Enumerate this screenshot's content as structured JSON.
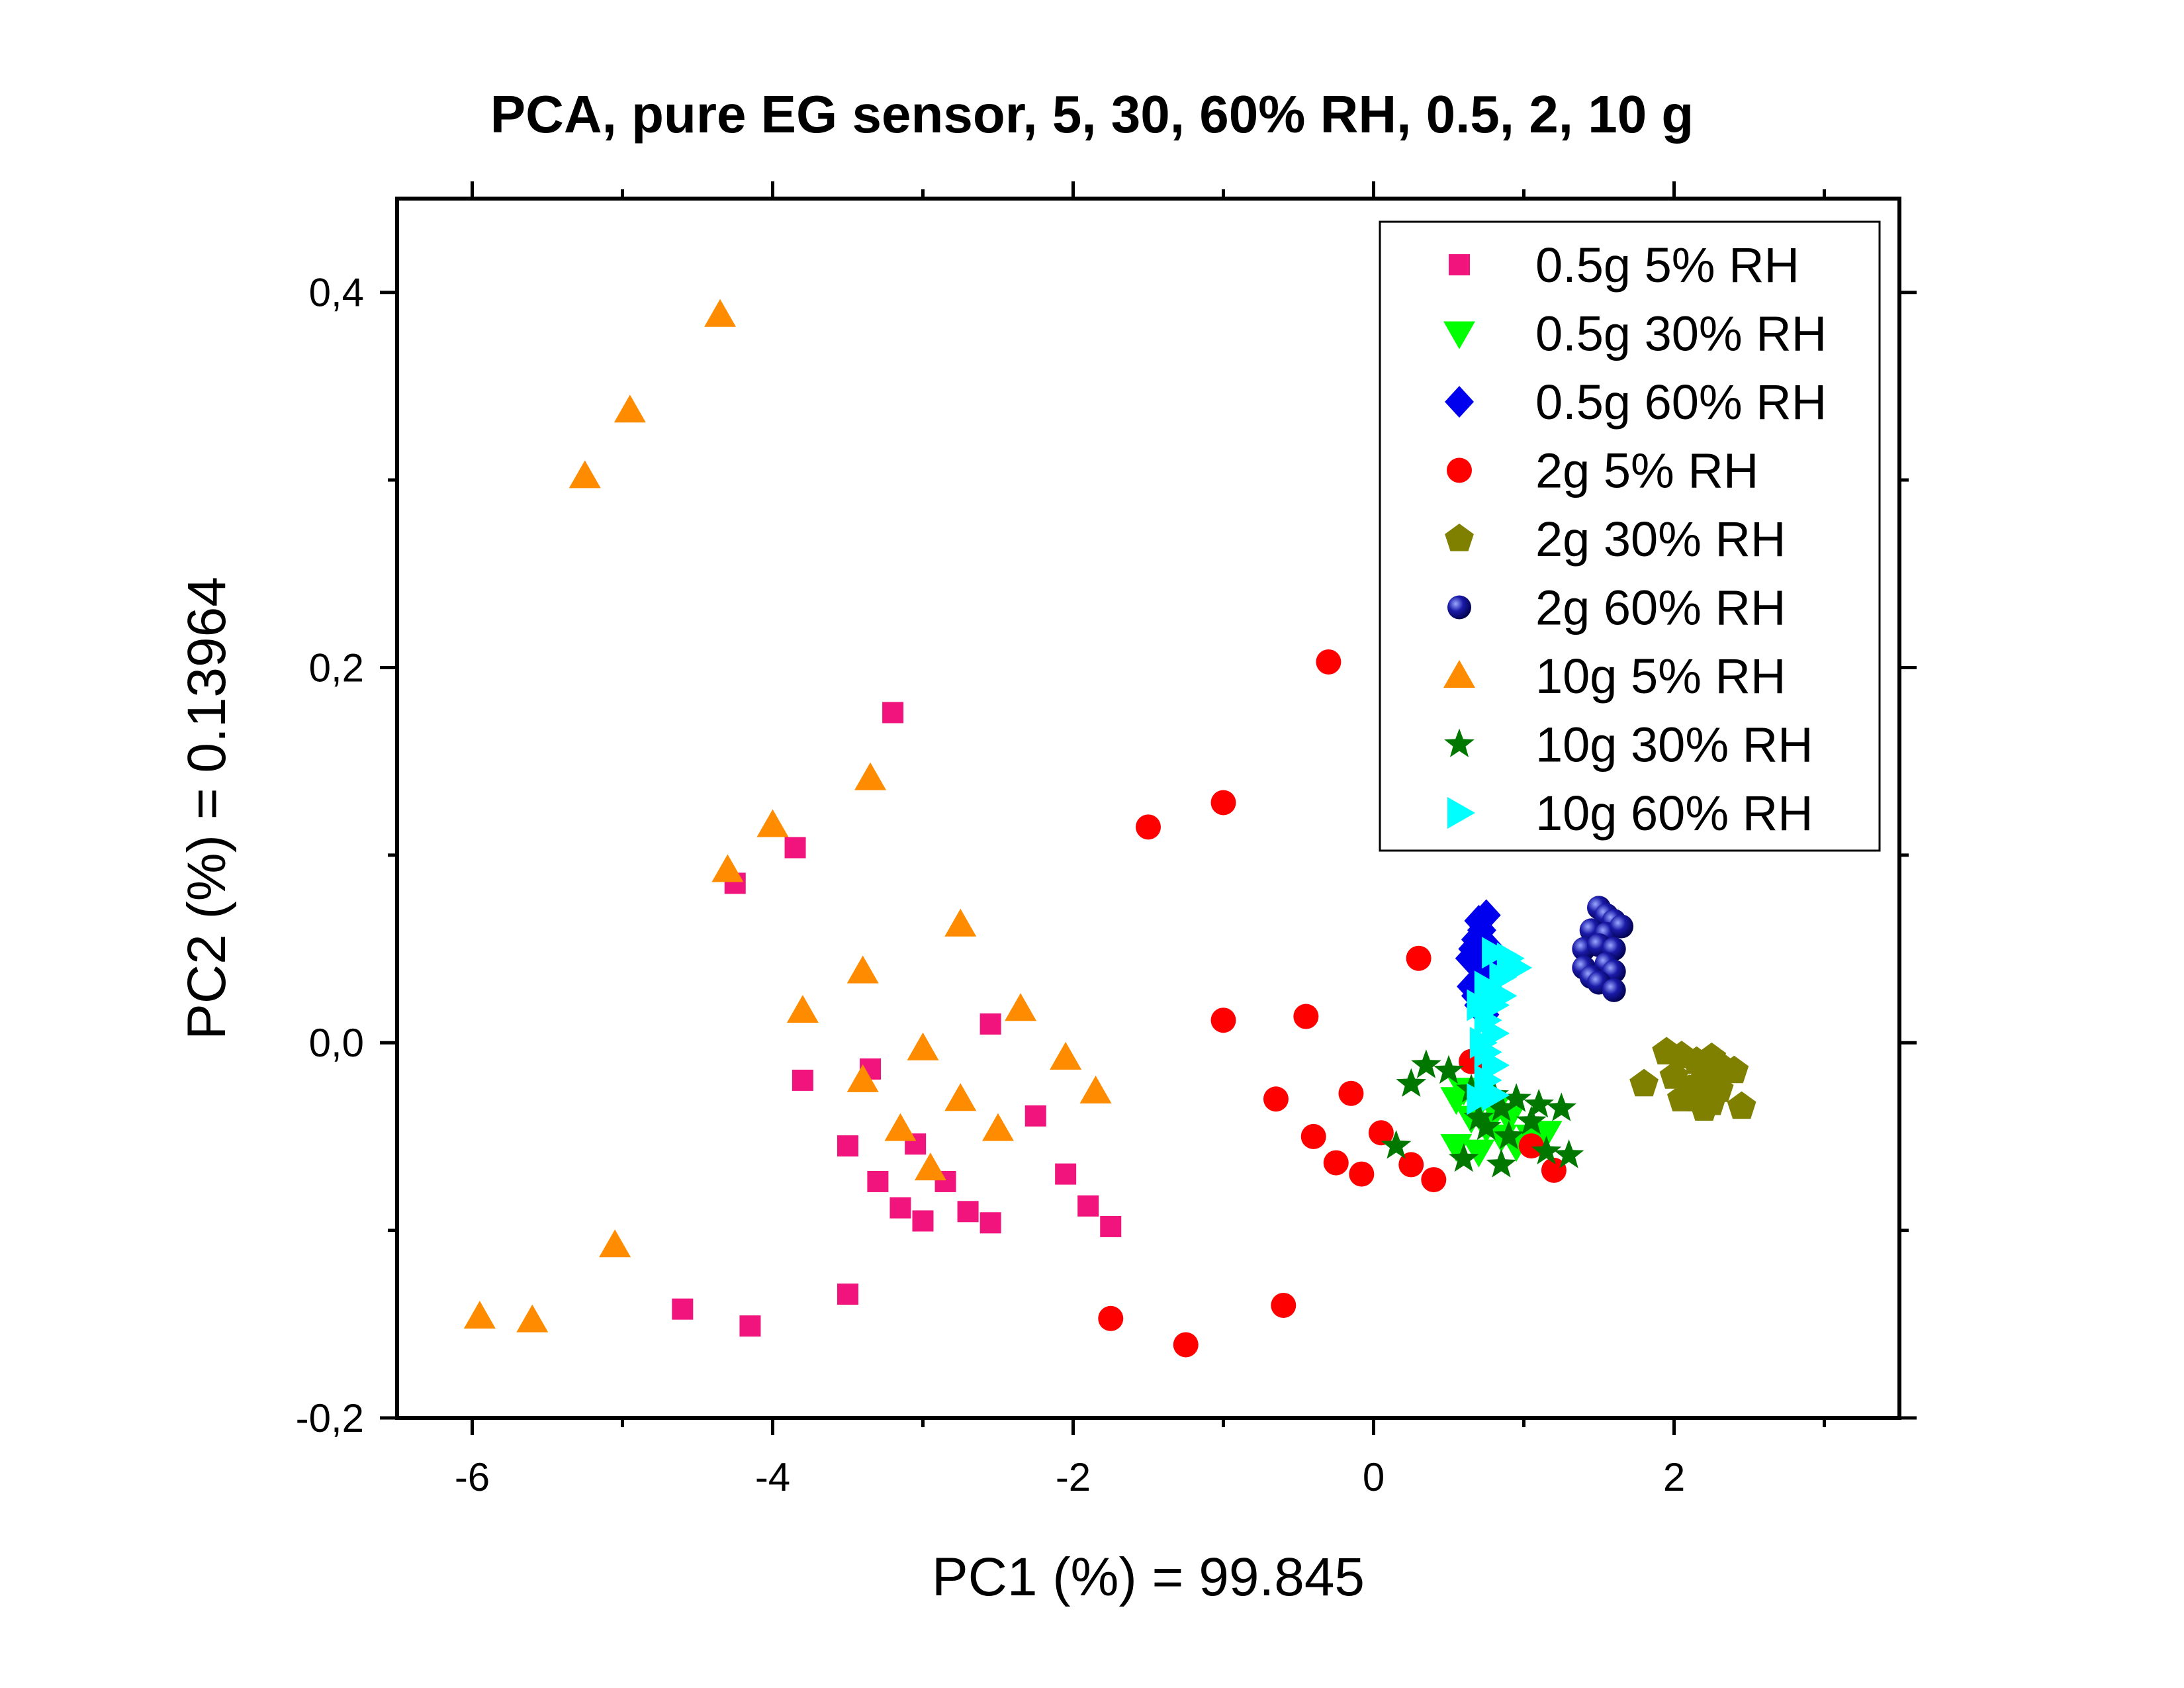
{
  "chart_data": {
    "type": "scatter",
    "title": "PCA, pure EG sensor, 5, 30, 60% RH, 0.5, 2, 10 g",
    "xlabel": "PC1 (%) = 99.845",
    "ylabel": "PC2 (%) = 0.13964",
    "xlim": [
      -6.5,
      3.5
    ],
    "ylim": [
      -0.2,
      0.45
    ],
    "xticks": [
      -6,
      -4,
      -2,
      0,
      2
    ],
    "xtick_labels": [
      "-6",
      "-4",
      "-2",
      "0",
      "2"
    ],
    "yticks": [
      -0.2,
      0.0,
      0.2,
      0.4
    ],
    "ytick_labels": [
      "-0,2",
      "0,0",
      "0,2",
      "0,4"
    ],
    "grid": false,
    "legend_position": "top-right",
    "series": [
      {
        "name": "0.5g 5% RH",
        "marker": "square",
        "color": "#f0147c",
        "points": [
          [
            -3.2,
            0.176
          ],
          [
            -3.85,
            0.104
          ],
          [
            -4.25,
            0.085
          ],
          [
            -2.55,
            0.01
          ],
          [
            -3.8,
            -0.02
          ],
          [
            -3.35,
            -0.014
          ],
          [
            -2.25,
            -0.039
          ],
          [
            -3.5,
            -0.055
          ],
          [
            -3.05,
            -0.054
          ],
          [
            -3.3,
            -0.074
          ],
          [
            -2.85,
            -0.074
          ],
          [
            -2.05,
            -0.07
          ],
          [
            -3.15,
            -0.088
          ],
          [
            -3.0,
            -0.095
          ],
          [
            -2.7,
            -0.09
          ],
          [
            -2.55,
            -0.096
          ],
          [
            -1.9,
            -0.087
          ],
          [
            -1.75,
            -0.098
          ],
          [
            -3.5,
            -0.134
          ],
          [
            -4.6,
            -0.142
          ],
          [
            -4.15,
            -0.151
          ]
        ]
      },
      {
        "name": "0.5g 30% RH",
        "marker": "triangle-down",
        "color": "#00ff00",
        "points": [
          [
            0.55,
            -0.03
          ],
          [
            0.6,
            -0.025
          ],
          [
            0.65,
            -0.04
          ],
          [
            0.75,
            -0.045
          ],
          [
            0.85,
            -0.05
          ],
          [
            0.55,
            -0.055
          ],
          [
            0.7,
            -0.058
          ],
          [
            0.95,
            -0.055
          ],
          [
            1.05,
            -0.05
          ],
          [
            1.15,
            -0.048
          ],
          [
            0.9,
            -0.04
          ],
          [
            0.8,
            -0.035
          ]
        ]
      },
      {
        "name": "0.5g 60% RH",
        "marker": "diamond",
        "color": "#0000ee",
        "points": [
          [
            0.7,
            0.065
          ],
          [
            0.75,
            0.068
          ],
          [
            0.72,
            0.06
          ],
          [
            0.68,
            0.055
          ],
          [
            0.66,
            0.05
          ],
          [
            0.64,
            0.045
          ],
          [
            0.7,
            0.04
          ],
          [
            0.72,
            0.035
          ],
          [
            0.65,
            0.03
          ],
          [
            0.68,
            0.025
          ],
          [
            0.7,
            0.02
          ],
          [
            0.74,
            0.015
          ],
          [
            0.78,
            0.05
          ],
          [
            0.8,
            0.04
          ]
        ]
      },
      {
        "name": "2g 5% RH",
        "marker": "circle",
        "color": "#ff0000",
        "points": [
          [
            -0.3,
            0.203
          ],
          [
            -1.0,
            0.128
          ],
          [
            -1.5,
            0.115
          ],
          [
            0.3,
            0.045
          ],
          [
            -1.0,
            0.012
          ],
          [
            -0.45,
            0.014
          ],
          [
            0.65,
            -0.01
          ],
          [
            -0.15,
            -0.027
          ],
          [
            -0.65,
            -0.03
          ],
          [
            -0.4,
            -0.05
          ],
          [
            0.05,
            -0.048
          ],
          [
            1.05,
            -0.055
          ],
          [
            -0.25,
            -0.064
          ],
          [
            -0.08,
            -0.07
          ],
          [
            0.25,
            -0.065
          ],
          [
            0.4,
            -0.073
          ],
          [
            1.2,
            -0.068
          ],
          [
            -0.6,
            -0.14
          ],
          [
            -1.75,
            -0.147
          ],
          [
            -1.25,
            -0.161
          ]
        ]
      },
      {
        "name": "2g 30% RH",
        "marker": "pentagon",
        "color": "#808000",
        "points": [
          [
            1.95,
            -0.005
          ],
          [
            2.05,
            -0.007
          ],
          [
            2.15,
            -0.01
          ],
          [
            2.25,
            -0.008
          ],
          [
            2.3,
            -0.012
          ],
          [
            2.4,
            -0.015
          ],
          [
            2.0,
            -0.018
          ],
          [
            2.2,
            -0.02
          ],
          [
            1.8,
            -0.022
          ],
          [
            2.1,
            -0.025
          ],
          [
            2.3,
            -0.025
          ],
          [
            2.15,
            -0.03
          ],
          [
            2.25,
            -0.032
          ],
          [
            2.45,
            -0.034
          ],
          [
            2.2,
            -0.035
          ],
          [
            2.05,
            -0.03
          ]
        ]
      },
      {
        "name": "2g 60% RH",
        "marker": "sphere",
        "color": "#00008b",
        "points": [
          [
            1.5,
            0.072
          ],
          [
            1.55,
            0.068
          ],
          [
            1.6,
            0.065
          ],
          [
            1.45,
            0.06
          ],
          [
            1.55,
            0.058
          ],
          [
            1.65,
            0.062
          ],
          [
            1.4,
            0.05
          ],
          [
            1.5,
            0.052
          ],
          [
            1.6,
            0.05
          ],
          [
            1.4,
            0.04
          ],
          [
            1.55,
            0.042
          ],
          [
            1.45,
            0.035
          ],
          [
            1.6,
            0.038
          ],
          [
            1.5,
            0.032
          ],
          [
            1.6,
            0.028
          ]
        ]
      },
      {
        "name": "10g 5% RH",
        "marker": "triangle-up",
        "color": "#ff8c00",
        "points": [
          [
            -4.35,
            0.388
          ],
          [
            -4.95,
            0.337
          ],
          [
            -5.25,
            0.302
          ],
          [
            -3.35,
            0.141
          ],
          [
            -4.0,
            0.116
          ],
          [
            -4.3,
            0.092
          ],
          [
            -2.75,
            0.063
          ],
          [
            -3.4,
            0.038
          ],
          [
            -3.8,
            0.017
          ],
          [
            -2.35,
            0.018
          ],
          [
            -3.0,
            -0.003
          ],
          [
            -2.05,
            -0.008
          ],
          [
            -3.4,
            -0.02
          ],
          [
            -1.85,
            -0.026
          ],
          [
            -2.75,
            -0.03
          ],
          [
            -3.15,
            -0.046
          ],
          [
            -2.5,
            -0.046
          ],
          [
            -2.95,
            -0.067
          ],
          [
            -5.05,
            -0.108
          ],
          [
            -5.95,
            -0.146
          ],
          [
            -5.6,
            -0.148
          ]
        ]
      },
      {
        "name": "10g 30% RH",
        "marker": "star",
        "color": "#007800",
        "points": [
          [
            0.35,
            -0.012
          ],
          [
            0.5,
            -0.015
          ],
          [
            0.25,
            -0.022
          ],
          [
            0.65,
            -0.025
          ],
          [
            0.8,
            -0.028
          ],
          [
            0.95,
            -0.03
          ],
          [
            0.85,
            -0.035
          ],
          [
            1.1,
            -0.033
          ],
          [
            1.25,
            -0.035
          ],
          [
            0.7,
            -0.04
          ],
          [
            1.05,
            -0.042
          ],
          [
            0.9,
            -0.05
          ],
          [
            0.15,
            -0.055
          ],
          [
            1.15,
            -0.058
          ],
          [
            1.3,
            -0.06
          ],
          [
            0.6,
            -0.062
          ],
          [
            0.85,
            -0.065
          ],
          [
            0.75,
            -0.045
          ]
        ]
      },
      {
        "name": "10g 60% RH",
        "marker": "triangle-right",
        "color": "#00ffff",
        "points": [
          [
            0.8,
            0.048
          ],
          [
            0.9,
            0.045
          ],
          [
            0.95,
            0.04
          ],
          [
            0.85,
            0.035
          ],
          [
            0.75,
            0.03
          ],
          [
            0.85,
            0.025
          ],
          [
            0.8,
            0.02
          ],
          [
            0.75,
            0.012
          ],
          [
            0.8,
            0.005
          ],
          [
            0.75,
            -0.005
          ],
          [
            0.8,
            -0.012
          ],
          [
            0.75,
            -0.02
          ],
          [
            0.8,
            -0.028
          ],
          [
            0.7,
            -0.03
          ],
          [
            0.7,
            0.02
          ],
          [
            0.72,
            0.0
          ]
        ]
      }
    ]
  }
}
